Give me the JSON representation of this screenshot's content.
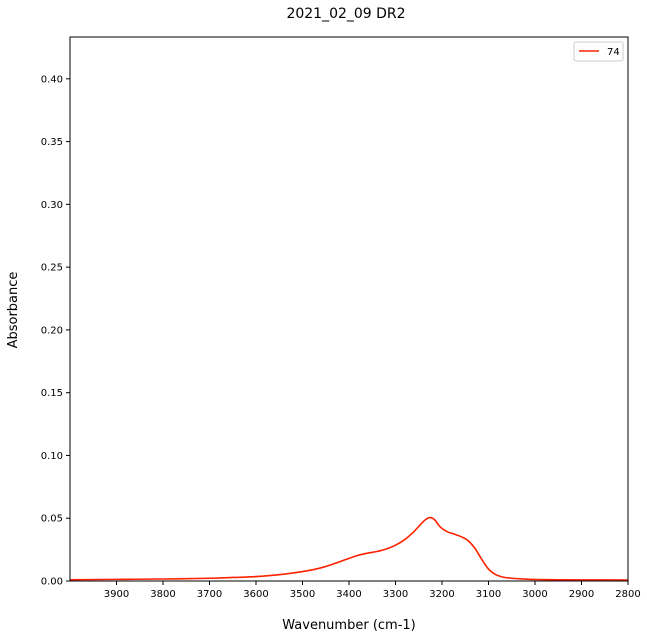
{
  "chart_data": {
    "type": "line",
    "title": "2021_02_09 DR2",
    "xlabel": "Wavenumber (cm-1)",
    "ylabel": "Absorbance",
    "xlim": [
      4000,
      2800
    ],
    "ylim": [
      0,
      0.4333
    ],
    "x_reversed": true,
    "xticks": [
      3900,
      3800,
      3700,
      3600,
      3500,
      3400,
      3300,
      3200,
      3100,
      3000,
      2900,
      2800
    ],
    "yticks": [
      0.0,
      0.05,
      0.1,
      0.15,
      0.2,
      0.25,
      0.3,
      0.35,
      0.4
    ],
    "ytick_labels": [
      "0.00",
      "0.05",
      "0.10",
      "0.15",
      "0.20",
      "0.25",
      "0.30",
      "0.35",
      "0.40"
    ],
    "grid": false,
    "legend_position": "top-right",
    "colors": {
      "series": "#ff2200",
      "axis": "#000000"
    },
    "series": [
      {
        "name": "74",
        "x": [
          4000,
          3900,
          3800,
          3700,
          3650,
          3600,
          3550,
          3500,
          3460,
          3430,
          3400,
          3380,
          3360,
          3340,
          3320,
          3300,
          3280,
          3260,
          3245,
          3235,
          3225,
          3215,
          3205,
          3190,
          3175,
          3160,
          3145,
          3130,
          3115,
          3100,
          3085,
          3070,
          3050,
          3030,
          3010,
          3000,
          2950,
          2900,
          2800
        ],
        "values": [
          0.001,
          0.0013,
          0.0016,
          0.0022,
          0.0028,
          0.0035,
          0.005,
          0.0075,
          0.0105,
          0.014,
          0.018,
          0.0205,
          0.0222,
          0.0235,
          0.0255,
          0.0285,
          0.033,
          0.0395,
          0.0455,
          0.049,
          0.0505,
          0.0485,
          0.0435,
          0.0395,
          0.0375,
          0.0355,
          0.0325,
          0.0265,
          0.0175,
          0.0095,
          0.0052,
          0.0032,
          0.0022,
          0.0017,
          0.0013,
          0.0012,
          0.001,
          0.0009,
          0.0008
        ]
      }
    ]
  }
}
